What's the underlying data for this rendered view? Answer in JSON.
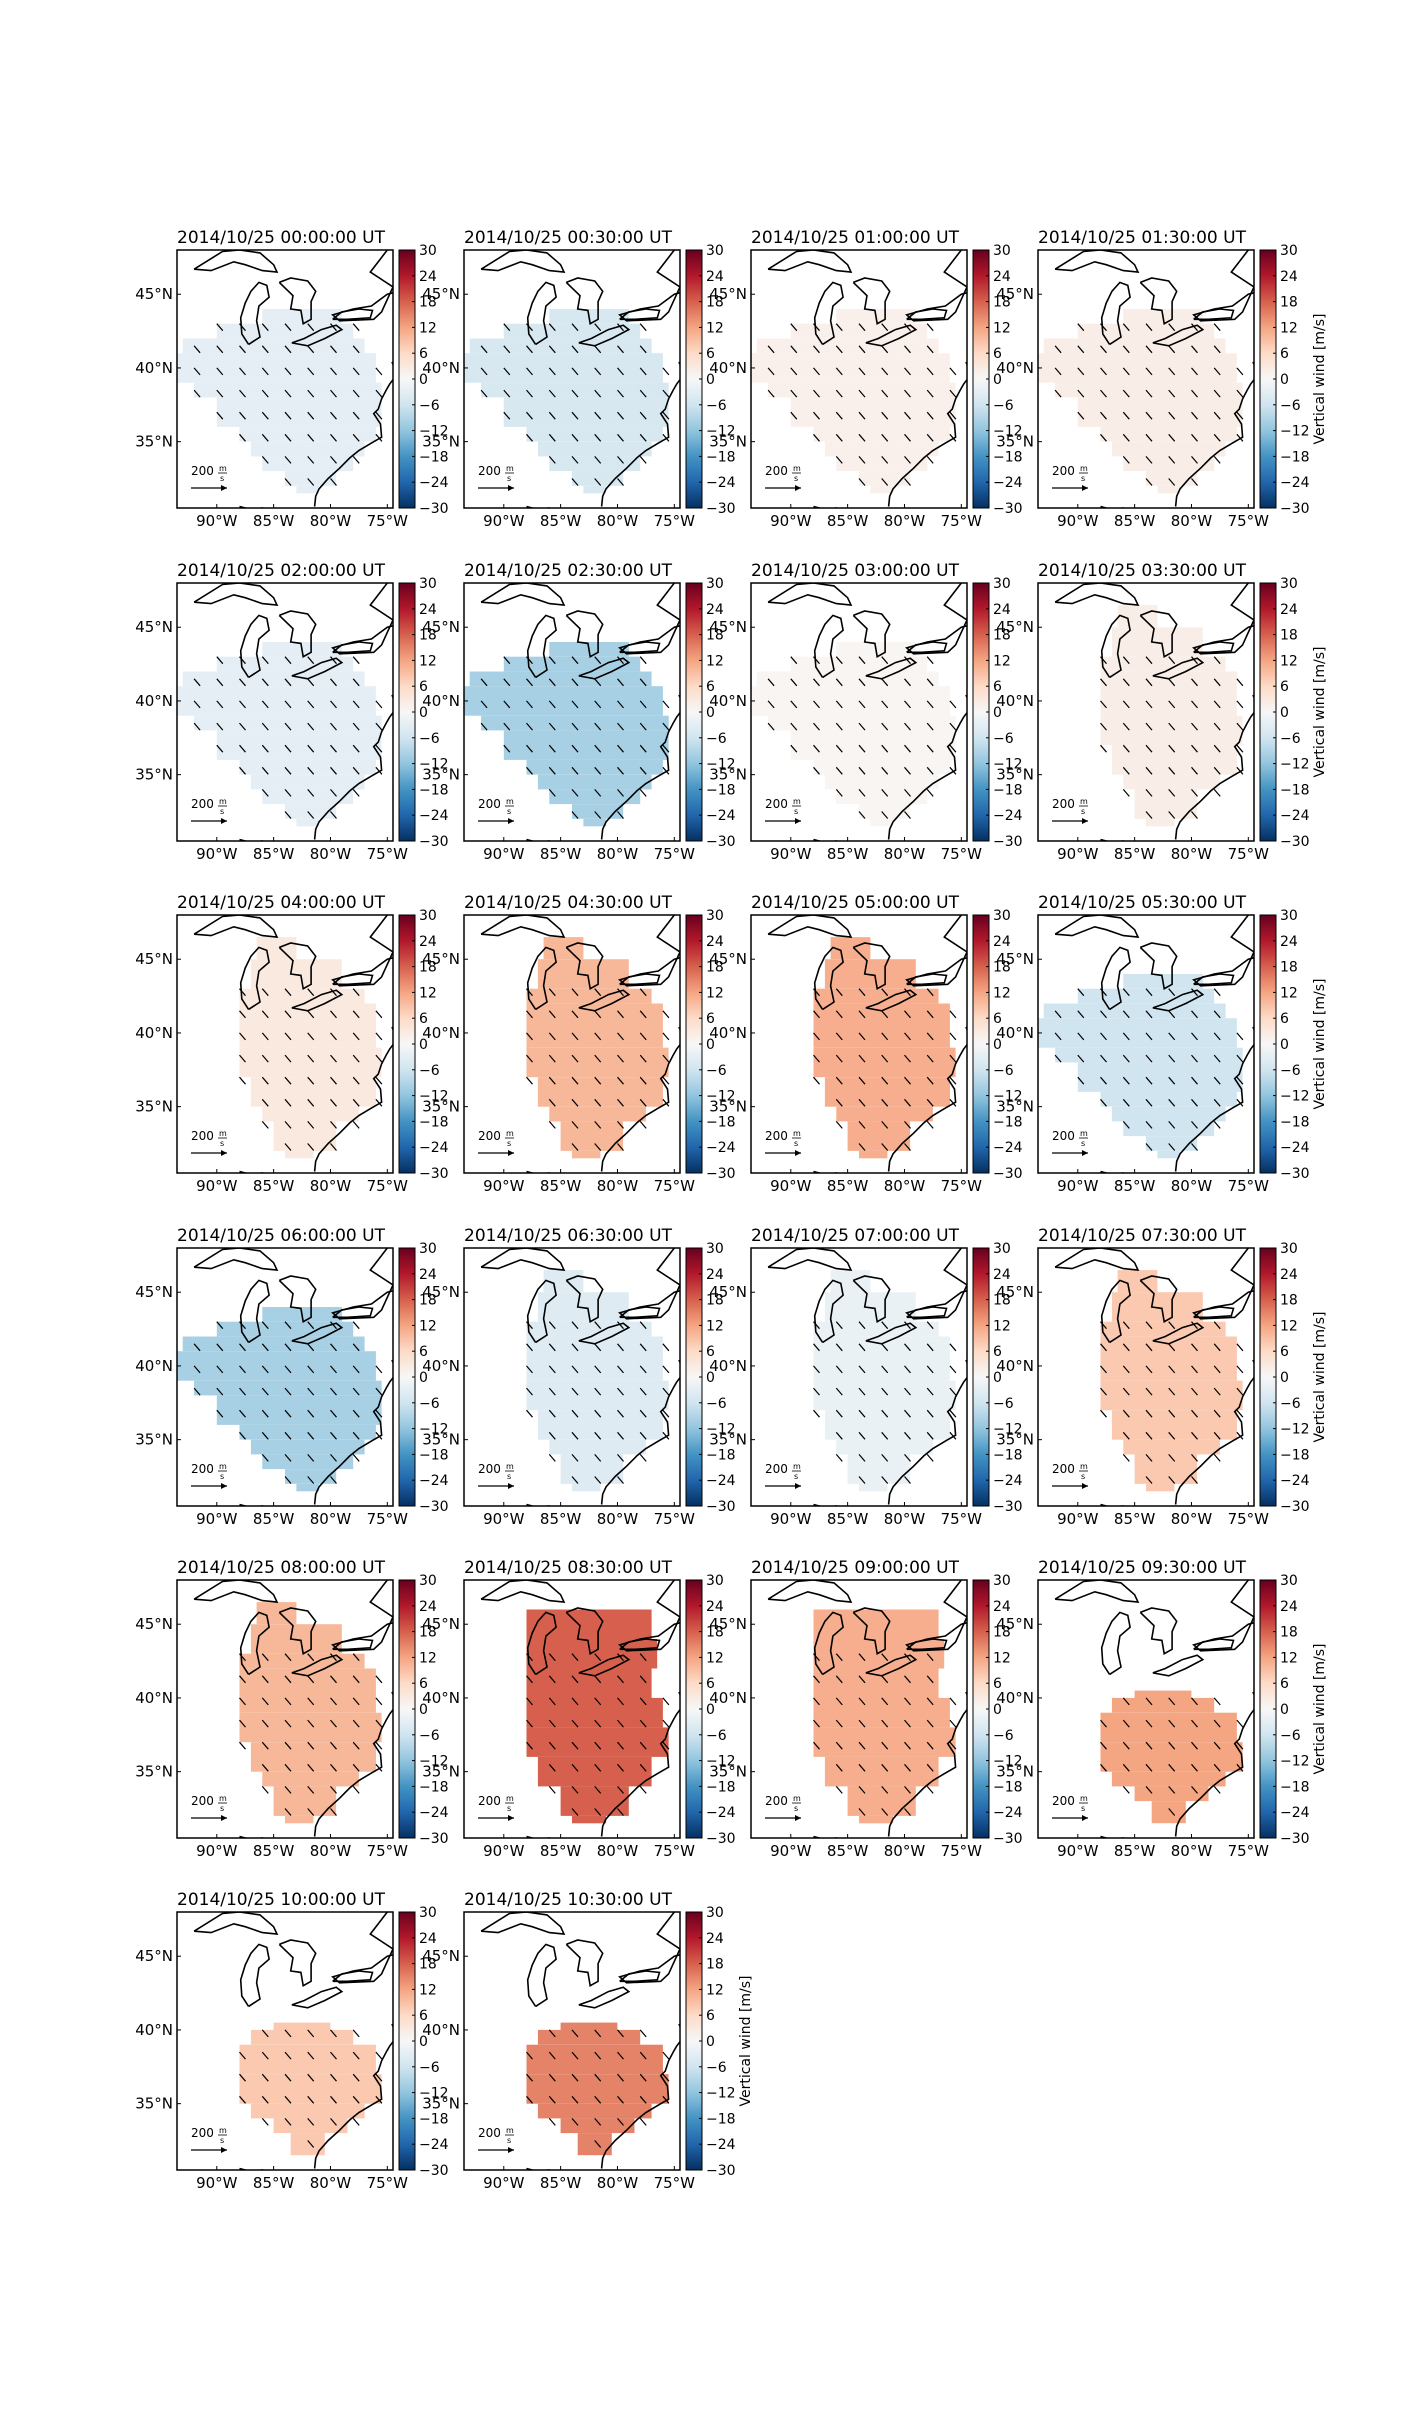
{
  "figure": {
    "colorbar": {
      "ticks": [
        "30",
        "24",
        "18",
        "12",
        "6",
        "0",
        "−6",
        "−12",
        "−18",
        "−24",
        "−30"
      ],
      "label": "Vertical wind [m/s]",
      "colors": {
        "neg_strong": "#08306b",
        "neg": "#2166ac",
        "neg_mid": "#92c5de",
        "zero": "#f7f7f7",
        "pos_mid": "#f4a582",
        "pos": "#b2182b",
        "pos_strong": "#67001f"
      }
    },
    "axes": {
      "lon_ticks": [
        "90°W",
        "85°W",
        "80°W",
        "75°W"
      ],
      "lat_ticks": [
        "45°N",
        "40°N",
        "35°N"
      ]
    },
    "scale_key": {
      "value": "200",
      "unit_num": "m",
      "unit_den": "s"
    }
  },
  "panels": [
    {
      "time": "2014/10/25 00:00:00 UT",
      "vertical_wind": -3,
      "shape": "A"
    },
    {
      "time": "2014/10/25 00:30:00 UT",
      "vertical_wind": -5,
      "shape": "A"
    },
    {
      "time": "2014/10/25 01:00:00 UT",
      "vertical_wind": 1.5,
      "shape": "A"
    },
    {
      "time": "2014/10/25 01:30:00 UT",
      "vertical_wind": 2,
      "shape": "A"
    },
    {
      "time": "2014/10/25 02:00:00 UT",
      "vertical_wind": -3,
      "shape": "A"
    },
    {
      "time": "2014/10/25 02:30:00 UT",
      "vertical_wind": -10,
      "shape": "A"
    },
    {
      "time": "2014/10/25 03:00:00 UT",
      "vertical_wind": 0.5,
      "shape": "A"
    },
    {
      "time": "2014/10/25 03:30:00 UT",
      "vertical_wind": 2,
      "shape": "B"
    },
    {
      "time": "2014/10/25 04:00:00 UT",
      "vertical_wind": 3,
      "shape": "B"
    },
    {
      "time": "2014/10/25 04:30:00 UT",
      "vertical_wind": 10,
      "shape": "B"
    },
    {
      "time": "2014/10/25 05:00:00 UT",
      "vertical_wind": 11,
      "shape": "B"
    },
    {
      "time": "2014/10/25 05:30:00 UT",
      "vertical_wind": -6,
      "shape": "A"
    },
    {
      "time": "2014/10/25 06:00:00 UT",
      "vertical_wind": -10,
      "shape": "A"
    },
    {
      "time": "2014/10/25 06:30:00 UT",
      "vertical_wind": -4,
      "shape": "B"
    },
    {
      "time": "2014/10/25 07:00:00 UT",
      "vertical_wind": -2,
      "shape": "B"
    },
    {
      "time": "2014/10/25 07:30:00 UT",
      "vertical_wind": 8,
      "shape": "B"
    },
    {
      "time": "2014/10/25 08:00:00 UT",
      "vertical_wind": 10,
      "shape": "B"
    },
    {
      "time": "2014/10/25 08:30:00 UT",
      "vertical_wind": 18,
      "shape": "C"
    },
    {
      "time": "2014/10/25 09:00:00 UT",
      "vertical_wind": 11,
      "shape": "C"
    },
    {
      "time": "2014/10/25 09:30:00 UT",
      "vertical_wind": 12,
      "shape": "D"
    },
    {
      "time": "2014/10/25 10:00:00 UT",
      "vertical_wind": 8,
      "shape": "D"
    },
    {
      "time": "2014/10/25 10:30:00 UT",
      "vertical_wind": 15,
      "shape": "D"
    }
  ]
}
